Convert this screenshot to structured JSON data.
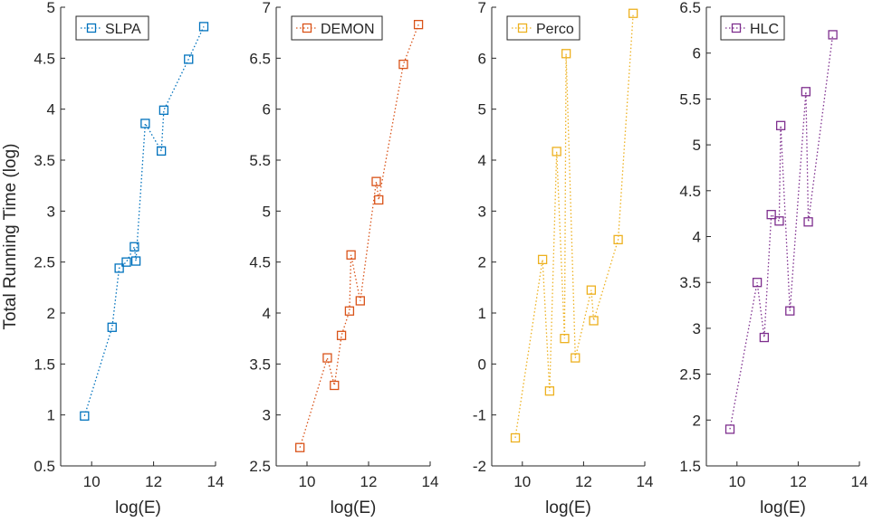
{
  "chart_data": [
    {
      "type": "line",
      "xlabel": "log(E)",
      "ylabel": "Total Running Time (log)",
      "xlim": [
        9,
        14
      ],
      "ylim": [
        0.5,
        5
      ],
      "xticks": [
        "10",
        "12",
        "14"
      ],
      "yticks": [
        "0.5",
        "1",
        "1.5",
        "2",
        "2.5",
        "3",
        "3.5",
        "4",
        "4.5",
        "5"
      ],
      "legend_position": "top",
      "series": [
        {
          "name": "SLPA",
          "color": "#0072BD",
          "marker": "square",
          "line_style": "dotted",
          "x": [
            9.77,
            10.66,
            10.89,
            11.12,
            11.38,
            11.43,
            11.73,
            12.25,
            12.33,
            13.13,
            13.62
          ],
          "y": [
            0.99,
            1.86,
            2.44,
            2.5,
            2.65,
            2.51,
            3.86,
            3.59,
            3.99,
            4.49,
            4.81
          ]
        }
      ]
    },
    {
      "type": "line",
      "xlabel": "log(E)",
      "ylabel": "",
      "xlim": [
        9,
        14
      ],
      "ylim": [
        2.5,
        7
      ],
      "xticks": [
        "10",
        "12",
        "14"
      ],
      "yticks": [
        "2.5",
        "3",
        "3.5",
        "4",
        "4.5",
        "5",
        "5.5",
        "6",
        "6.5",
        "7"
      ],
      "legend_position": "top",
      "series": [
        {
          "name": "DEMON",
          "color": "#D95319",
          "marker": "square",
          "line_style": "dotted",
          "x": [
            9.77,
            10.66,
            10.89,
            11.12,
            11.38,
            11.43,
            11.73,
            12.25,
            12.33,
            13.13,
            13.62
          ],
          "y": [
            2.68,
            3.56,
            3.29,
            3.78,
            4.02,
            4.57,
            4.12,
            5.29,
            5.11,
            6.44,
            6.83
          ]
        }
      ]
    },
    {
      "type": "line",
      "xlabel": "log(E)",
      "ylabel": "",
      "xlim": [
        9,
        14
      ],
      "ylim": [
        -2,
        7
      ],
      "xticks": [
        "10",
        "12",
        "14"
      ],
      "yticks": [
        "-2",
        "-1",
        "0",
        "1",
        "2",
        "3",
        "4",
        "5",
        "6",
        "7"
      ],
      "legend_position": "top",
      "series": [
        {
          "name": "Perco",
          "color": "#EDB120",
          "marker": "square",
          "line_style": "dotted",
          "x": [
            9.77,
            10.66,
            10.89,
            11.12,
            11.38,
            11.43,
            11.73,
            12.25,
            12.33,
            13.13,
            13.62
          ],
          "y": [
            -1.45,
            2.05,
            -0.53,
            4.17,
            0.5,
            6.09,
            0.12,
            1.45,
            0.85,
            2.44,
            6.88
          ]
        }
      ]
    },
    {
      "type": "line",
      "xlabel": "log(E)",
      "ylabel": "",
      "xlim": [
        9,
        14
      ],
      "ylim": [
        1.5,
        6.5
      ],
      "xticks": [
        "10",
        "12",
        "14"
      ],
      "yticks": [
        "1.5",
        "2",
        "2.5",
        "3",
        "3.5",
        "4",
        "4.5",
        "5",
        "5.5",
        "6",
        "6.5"
      ],
      "legend_position": "top",
      "series": [
        {
          "name": "HLC",
          "color": "#7E2F8E",
          "marker": "square",
          "line_style": "dotted",
          "x": [
            9.77,
            10.66,
            10.89,
            11.12,
            11.38,
            11.43,
            11.73,
            12.25,
            12.33,
            13.13
          ],
          "y": [
            1.9,
            3.5,
            2.9,
            4.24,
            4.17,
            5.21,
            3.19,
            5.58,
            4.16,
            6.2
          ]
        }
      ]
    }
  ]
}
